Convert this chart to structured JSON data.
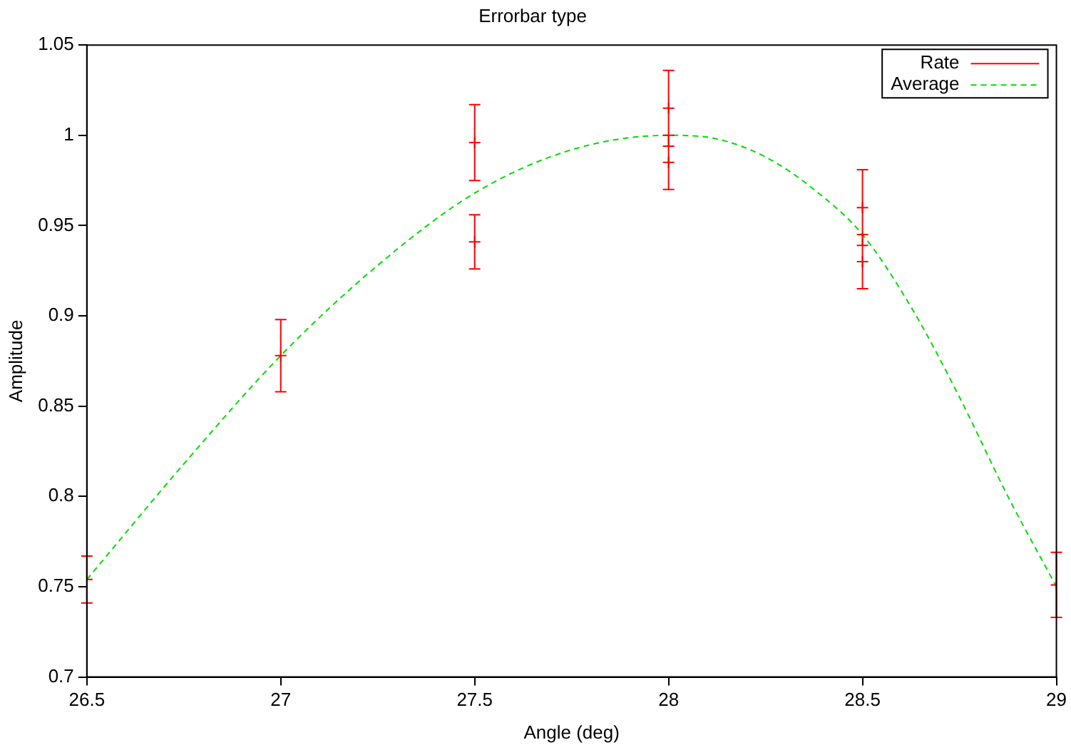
{
  "chart_data": {
    "type": "scatter",
    "title": "Errorbar type",
    "xlabel": "Angle (deg)",
    "ylabel": "Amplitude",
    "xlim": [
      26.5,
      29
    ],
    "xticks": [
      26.5,
      27,
      27.5,
      28,
      28.5,
      29
    ],
    "ylim": [
      0.7,
      1.05
    ],
    "yticks": [
      0.7,
      0.75,
      0.8,
      0.85,
      0.9,
      0.95,
      1,
      1.05
    ],
    "legend": "top right",
    "series": [
      {
        "name": "Rate",
        "color": "#ff0000",
        "marker": "cross",
        "x": [
          26.5,
          27,
          27.5,
          27.5,
          28,
          28,
          28.5,
          28.5,
          29
        ],
        "values": [
          0.754,
          0.878,
          0.996,
          0.941,
          1.015,
          0.985,
          0.96,
          0.93,
          0.751
        ],
        "errors": [
          0.013,
          0.02,
          0.021,
          0.015,
          0.021,
          0.015,
          0.021,
          0.015,
          0.018
        ]
      },
      {
        "name": "Average",
        "type": "line",
        "color": "#00dd00",
        "line_style": "dashed",
        "marker": "none",
        "x": [
          26.5,
          26.75,
          27,
          27.25,
          27.5,
          27.75,
          28,
          28.125,
          28.25,
          28.375,
          28.5,
          28.625,
          28.75,
          28.875,
          29
        ],
        "values": [
          0.754,
          0.818,
          0.878,
          0.928,
          0.968,
          0.992,
          1.0,
          0.998,
          0.988,
          0.97,
          0.945,
          0.905,
          0.855,
          0.8,
          0.75
        ]
      }
    ]
  }
}
